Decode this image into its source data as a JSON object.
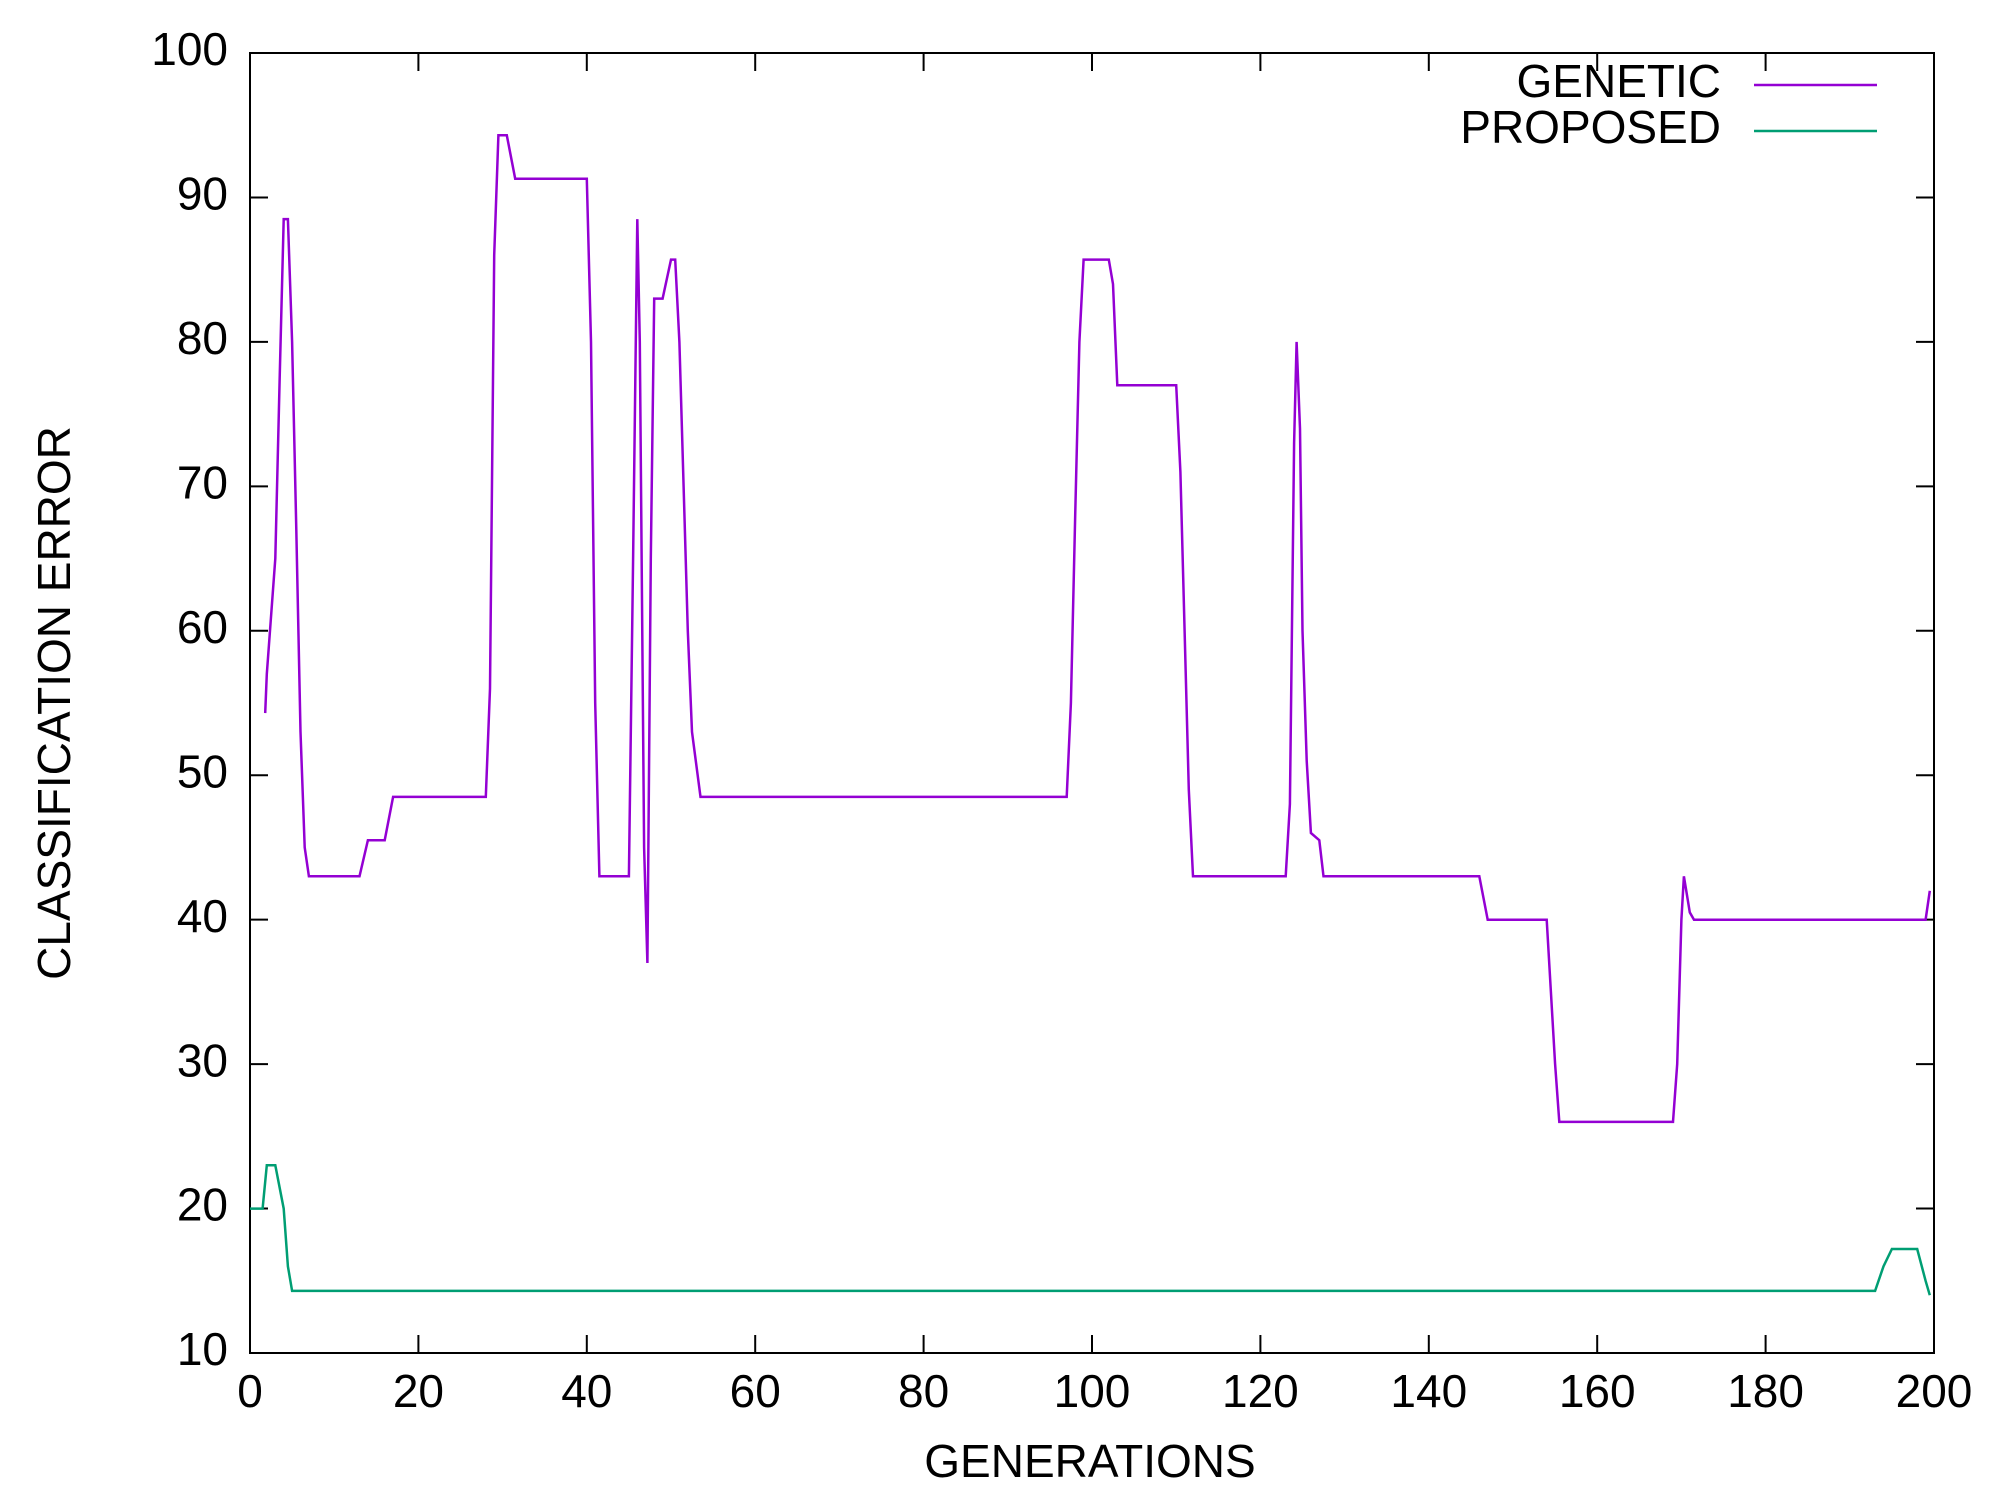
{
  "chart_data": {
    "type": "line",
    "xlabel": "GENERATIONS",
    "ylabel": "CLASSIFICATION ERROR",
    "xlim": [
      0,
      200
    ],
    "xticks": [
      0,
      20,
      40,
      60,
      80,
      100,
      120,
      140,
      160,
      180,
      200
    ],
    "ylim": [
      10,
      100
    ],
    "yticks": [
      10,
      20,
      30,
      40,
      50,
      60,
      70,
      80,
      90,
      100
    ],
    "legend": "top-right",
    "series": [
      {
        "name": "GENETIC",
        "color": "#9400d3",
        "x": [
          1.8,
          2,
          3,
          3.5,
          4,
          4.5,
          5,
          5.5,
          6,
          6.5,
          7,
          13,
          14,
          16,
          17,
          28,
          28.5,
          29,
          29.5,
          30.5,
          31.5,
          40,
          40.5,
          41,
          41.5,
          45,
          45.5,
          46,
          46.3,
          46.8,
          47.2,
          47.6,
          48,
          49,
          50,
          50.5,
          51,
          51.5,
          52,
          52.5,
          53.5,
          97,
          97.5,
          98,
          98.5,
          99,
          102,
          102.5,
          103,
          110,
          110.5,
          111,
          111.5,
          112,
          123,
          123.5,
          124,
          124.3,
          124.7,
          125,
          125.5,
          126,
          127,
          127.5,
          146,
          147,
          154,
          154.5,
          155,
          155.5,
          169,
          169.5,
          170,
          170.3,
          171,
          171.5,
          199,
          199.5
        ],
        "values": [
          54.3,
          57,
          65,
          77,
          88.5,
          88.5,
          80,
          67,
          53,
          45,
          43,
          43,
          45.5,
          45.5,
          48.5,
          48.5,
          56,
          86,
          94.3,
          94.3,
          91.3,
          91.3,
          80,
          55,
          43,
          43,
          65,
          88.5,
          80,
          45,
          37,
          65,
          83,
          83,
          85.7,
          85.7,
          80,
          70,
          60,
          53,
          48.5,
          48.5,
          55,
          68,
          80,
          85.7,
          85.7,
          84,
          77,
          77,
          71,
          60,
          49,
          43,
          43,
          48,
          73,
          80,
          74,
          60,
          51,
          46,
          45.5,
          43,
          43,
          40,
          40,
          35,
          30,
          26,
          26,
          30,
          40,
          43,
          40.5,
          40,
          40,
          42
        ]
      },
      {
        "name": "PROPOSED",
        "color": "#009e73",
        "x": [
          0,
          1.5,
          2,
          3,
          4,
          4.5,
          5,
          193,
          194,
          195,
          198,
          199,
          199.5
        ],
        "values": [
          20,
          20,
          23,
          23,
          20,
          16,
          14.3,
          14.3,
          16,
          17.2,
          17.2,
          15,
          14
        ]
      }
    ]
  }
}
